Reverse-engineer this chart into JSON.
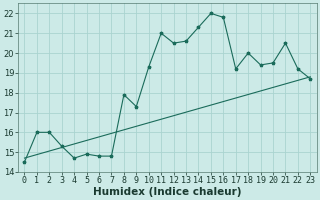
{
  "xlabel": "Humidex (Indice chaleur)",
  "bg_color": "#cceae7",
  "grid_color": "#aad4d0",
  "line_color": "#1a6b5a",
  "x_values": [
    0,
    1,
    2,
    3,
    4,
    5,
    6,
    7,
    8,
    9,
    10,
    11,
    12,
    13,
    14,
    15,
    16,
    17,
    18,
    19,
    20,
    21,
    22,
    23
  ],
  "y_values": [
    14.5,
    16.0,
    16.0,
    15.3,
    14.7,
    14.9,
    14.8,
    14.8,
    17.9,
    17.3,
    19.3,
    21.0,
    20.5,
    20.6,
    21.3,
    22.0,
    21.8,
    19.2,
    20.0,
    19.4,
    19.5,
    20.5,
    19.2,
    18.7
  ],
  "trend_start_x": 0,
  "trend_start_y": 14.7,
  "trend_end_x": 23,
  "trend_end_y": 18.8,
  "ylim": [
    14,
    22.5
  ],
  "xlim": [
    -0.5,
    23.5
  ],
  "yticks": [
    14,
    15,
    16,
    17,
    18,
    19,
    20,
    21,
    22
  ],
  "xticks": [
    0,
    1,
    2,
    3,
    4,
    5,
    6,
    7,
    8,
    9,
    10,
    11,
    12,
    13,
    14,
    15,
    16,
    17,
    18,
    19,
    20,
    21,
    22,
    23
  ],
  "tick_fontsize": 6,
  "xlabel_fontsize": 7.5,
  "linewidth": 0.8,
  "markersize": 2.5
}
